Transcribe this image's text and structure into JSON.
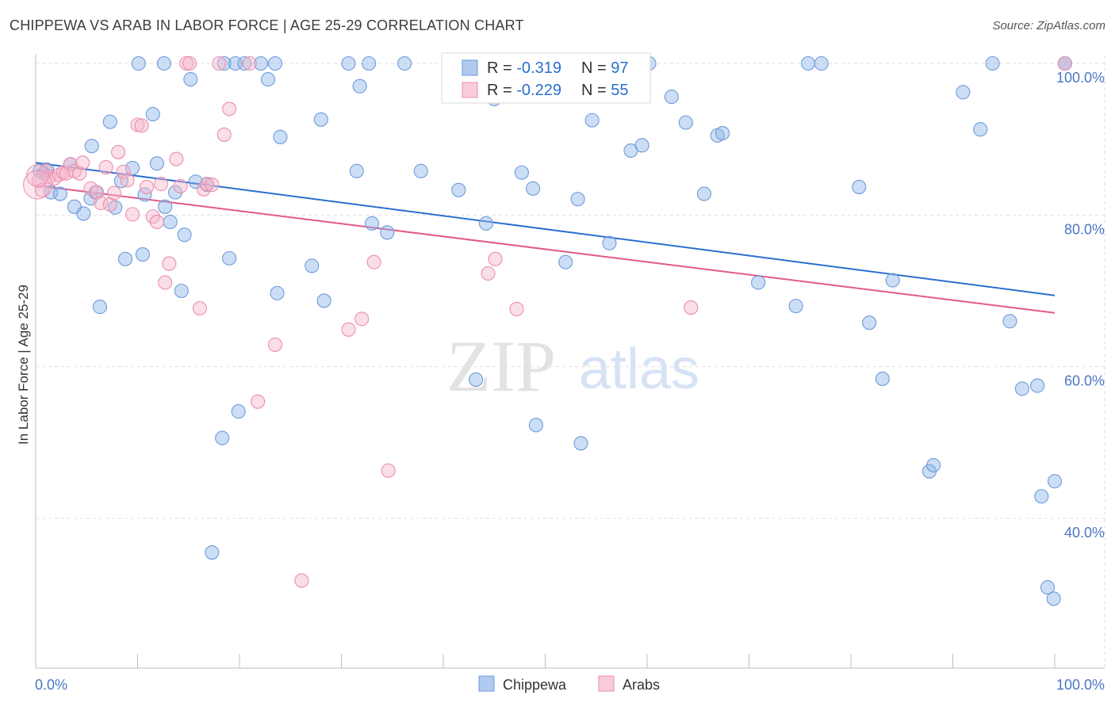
{
  "title": "CHIPPEWA VS ARAB IN LABOR FORCE | AGE 25-29 CORRELATION CHART",
  "source": "Source: ZipAtlas.com",
  "watermark": {
    "zip": "ZIP",
    "atlas": "atlas"
  },
  "chart_data": {
    "type": "scatter",
    "ylabel": "In Labor Force | Age 25-29",
    "xlim": [
      0,
      100
    ],
    "ylim": [
      20,
      100
    ],
    "x_ticks": [
      0,
      10,
      20,
      30,
      40,
      50,
      60,
      70,
      80,
      90,
      100
    ],
    "x_tick_labels": {
      "left": "0.0%",
      "right": "100.0%"
    },
    "y_ticks": [
      {
        "value": 100,
        "label": "100.0%"
      },
      {
        "value": 80,
        "label": "80.0%"
      },
      {
        "value": 60,
        "label": "60.0%"
      },
      {
        "value": 40,
        "label": "40.0%"
      }
    ],
    "grid": true,
    "legend_position": "bottom-center",
    "stats_box_position": "top-center",
    "series": [
      {
        "name": "Chippewa",
        "color": "#8fb5e8",
        "stroke": "#6e9bd9",
        "line_color": "#2b6fcf",
        "R": "-0.319",
        "N": "97",
        "trend": {
          "x": [
            0,
            100
          ],
          "y": [
            86.9,
            69.4
          ]
        },
        "points": [
          [
            0.4,
            85.8
          ],
          [
            0.8,
            85.5
          ],
          [
            1.1,
            86.0
          ],
          [
            1.5,
            83.0
          ],
          [
            2.4,
            82.8
          ],
          [
            3.4,
            86.7
          ],
          [
            3.8,
            81.1
          ],
          [
            4.7,
            80.2
          ],
          [
            5.4,
            82.2
          ],
          [
            5.5,
            89.1
          ],
          [
            5.9,
            83.0
          ],
          [
            6.3,
            67.9
          ],
          [
            7.3,
            92.3
          ],
          [
            7.8,
            81.0
          ],
          [
            8.4,
            84.5
          ],
          [
            8.8,
            74.2
          ],
          [
            9.5,
            86.2
          ],
          [
            10.1,
            100.0
          ],
          [
            10.5,
            74.8
          ],
          [
            10.7,
            82.7
          ],
          [
            11.5,
            93.3
          ],
          [
            11.9,
            86.8
          ],
          [
            12.6,
            100.0
          ],
          [
            12.7,
            81.1
          ],
          [
            13.2,
            79.1
          ],
          [
            13.7,
            83.0
          ],
          [
            14.3,
            70.0
          ],
          [
            14.6,
            77.4
          ],
          [
            15.2,
            97.9
          ],
          [
            15.7,
            84.4
          ],
          [
            16.8,
            84.0
          ],
          [
            17.3,
            35.5
          ],
          [
            18.3,
            50.6
          ],
          [
            18.5,
            100.0
          ],
          [
            19.0,
            74.3
          ],
          [
            19.6,
            100.0
          ],
          [
            19.9,
            54.1
          ],
          [
            20.5,
            100.0
          ],
          [
            22.1,
            100.0
          ],
          [
            22.8,
            97.9
          ],
          [
            23.5,
            100.0
          ],
          [
            23.7,
            69.7
          ],
          [
            24.0,
            90.3
          ],
          [
            27.1,
            73.3
          ],
          [
            28.0,
            92.6
          ],
          [
            28.3,
            68.7
          ],
          [
            30.7,
            100.0
          ],
          [
            31.5,
            85.8
          ],
          [
            31.8,
            97.0
          ],
          [
            32.7,
            100.0
          ],
          [
            33.0,
            78.9
          ],
          [
            34.5,
            77.7
          ],
          [
            36.2,
            100.0
          ],
          [
            37.8,
            85.8
          ],
          [
            41.5,
            83.3
          ],
          [
            43.2,
            58.3
          ],
          [
            44.2,
            78.9
          ],
          [
            45.0,
            95.3
          ],
          [
            47.7,
            85.6
          ],
          [
            48.8,
            83.5
          ],
          [
            49.1,
            52.3
          ],
          [
            50.5,
            100.0
          ],
          [
            52.0,
            73.8
          ],
          [
            53.2,
            82.1
          ],
          [
            53.5,
            49.9
          ],
          [
            54.6,
            92.5
          ],
          [
            56.3,
            76.3
          ],
          [
            58.4,
            88.5
          ],
          [
            59.5,
            89.2
          ],
          [
            60.2,
            100.0
          ],
          [
            62.4,
            95.6
          ],
          [
            63.8,
            92.2
          ],
          [
            65.6,
            82.8
          ],
          [
            66.9,
            90.5
          ],
          [
            67.4,
            90.8
          ],
          [
            70.9,
            71.1
          ],
          [
            74.6,
            68.0
          ],
          [
            75.8,
            100.0
          ],
          [
            77.1,
            100.0
          ],
          [
            80.8,
            83.7
          ],
          [
            81.8,
            65.8
          ],
          [
            83.1,
            58.4
          ],
          [
            84.1,
            71.4
          ],
          [
            87.7,
            46.2
          ],
          [
            88.1,
            47.0
          ],
          [
            91.0,
            96.2
          ],
          [
            92.7,
            91.3
          ],
          [
            93.9,
            100.0
          ],
          [
            95.6,
            66.0
          ],
          [
            96.8,
            57.1
          ],
          [
            98.3,
            57.5
          ],
          [
            98.7,
            42.9
          ],
          [
            99.3,
            30.9
          ],
          [
            99.9,
            29.4
          ],
          [
            100.0,
            44.9
          ],
          [
            101.0,
            100.0
          ],
          [
            101.0,
            100.0
          ]
        ]
      },
      {
        "name": "Arabs",
        "color": "#f5b6cb",
        "stroke": "#ea8fae",
        "line_color": "#e05a8a",
        "R": "-0.229",
        "N": "55",
        "trend": {
          "x": [
            0,
            100
          ],
          "y": [
            83.9,
            67.1
          ]
        },
        "points": [
          [
            0.3,
            84.5
          ],
          [
            0.6,
            83.3
          ],
          [
            1.0,
            85.8
          ],
          [
            1.3,
            85.0
          ],
          [
            1.8,
            84.8
          ],
          [
            2.3,
            85.3
          ],
          [
            2.7,
            85.6
          ],
          [
            3.0,
            85.5
          ],
          [
            3.4,
            86.7
          ],
          [
            3.8,
            85.8
          ],
          [
            4.3,
            85.5
          ],
          [
            4.6,
            86.9
          ],
          [
            5.4,
            83.5
          ],
          [
            6.0,
            83.0
          ],
          [
            6.4,
            81.6
          ],
          [
            6.9,
            86.3
          ],
          [
            7.3,
            81.4
          ],
          [
            7.7,
            82.9
          ],
          [
            8.1,
            88.3
          ],
          [
            8.6,
            85.7
          ],
          [
            9.0,
            84.6
          ],
          [
            9.5,
            80.1
          ],
          [
            10.0,
            91.9
          ],
          [
            10.4,
            91.8
          ],
          [
            10.9,
            83.7
          ],
          [
            11.5,
            79.8
          ],
          [
            11.9,
            79.1
          ],
          [
            12.3,
            84.1
          ],
          [
            12.7,
            71.1
          ],
          [
            13.1,
            73.6
          ],
          [
            13.8,
            87.4
          ],
          [
            14.2,
            83.8
          ],
          [
            14.8,
            100.0
          ],
          [
            15.1,
            100.0
          ],
          [
            16.1,
            67.7
          ],
          [
            16.5,
            83.4
          ],
          [
            16.8,
            84.1
          ],
          [
            17.3,
            84.0
          ],
          [
            18.0,
            100.0
          ],
          [
            18.5,
            90.6
          ],
          [
            19.0,
            94.0
          ],
          [
            21.0,
            100.0
          ],
          [
            21.8,
            55.4
          ],
          [
            23.5,
            62.9
          ],
          [
            26.1,
            31.8
          ],
          [
            30.7,
            64.9
          ],
          [
            32.0,
            66.3
          ],
          [
            33.2,
            73.8
          ],
          [
            34.6,
            46.3
          ],
          [
            44.4,
            72.3
          ],
          [
            45.1,
            74.2
          ],
          [
            46.8,
            100.0
          ],
          [
            47.2,
            67.6
          ],
          [
            64.3,
            67.8
          ],
          [
            101.0,
            100.0
          ]
        ]
      }
    ]
  }
}
